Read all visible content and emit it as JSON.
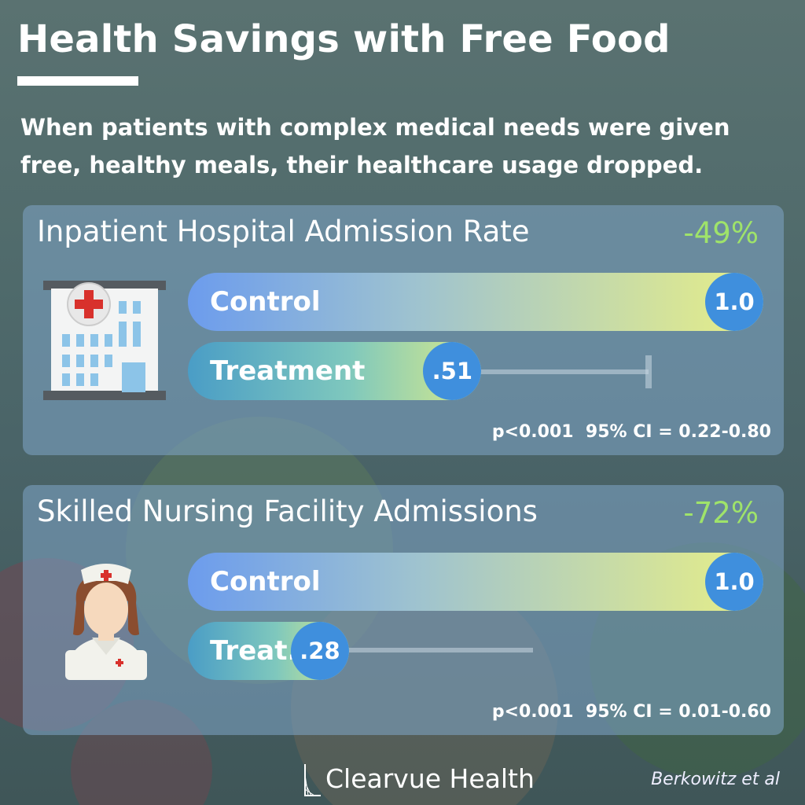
{
  "header": {
    "title": "Health Savings with Free Food",
    "subtitle": "When patients with complex medical needs were given free, healthy meals, their healthcare usage dropped."
  },
  "chart_data": [
    {
      "type": "bar",
      "title": "Inpatient Hospital Admission Rate",
      "change": "-49%",
      "icon": "hospital-icon",
      "categories": [
        "Control",
        "Treatment"
      ],
      "values": [
        1.0,
        0.51
      ],
      "value_labels": [
        "1.0",
        ".51"
      ],
      "ci": [
        0.22,
        0.8
      ],
      "stats": "p<0.001  95% CI = 0.22-0.80",
      "xlim": [
        0,
        1
      ]
    },
    {
      "type": "bar",
      "title": "Skilled Nursing Facility Admissions",
      "change": "-72%",
      "icon": "nurse-icon",
      "categories": [
        "Control",
        "Treat."
      ],
      "values": [
        1.0,
        0.28
      ],
      "value_labels": [
        "1.0",
        ".28"
      ],
      "ci": [
        0.01,
        0.6
      ],
      "stats": "p<0.001  95% CI = 0.01-0.60",
      "xlim": [
        0,
        1
      ]
    }
  ],
  "footer": {
    "brand": "Clearvue Health",
    "citation": "Berkowitz et al"
  },
  "colors": {
    "change_positive": "#9fe36a",
    "value_circle": "#3f8fdd",
    "panel": "#7fa5c8"
  }
}
